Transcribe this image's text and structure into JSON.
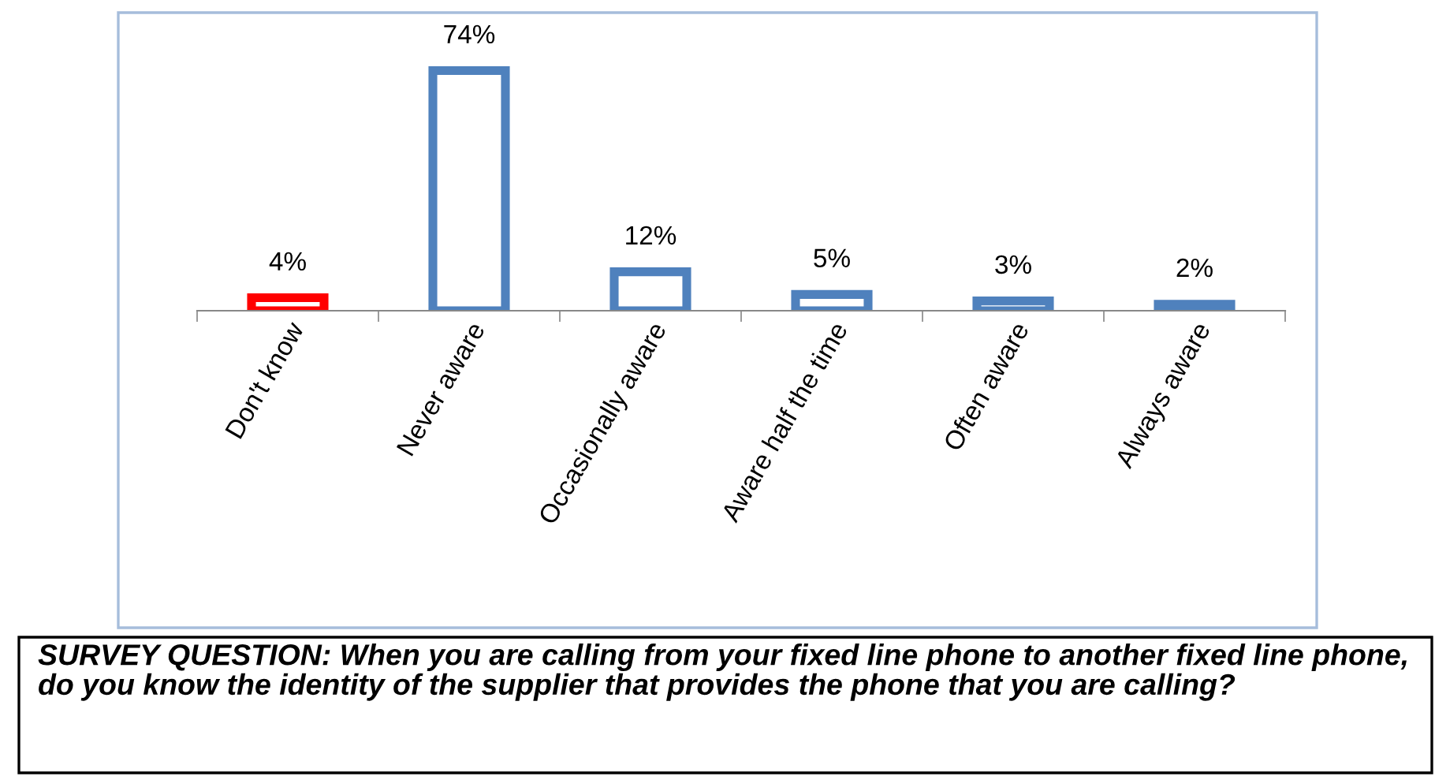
{
  "chart_data": {
    "type": "bar",
    "categories": [
      "Don't know",
      "Never aware",
      "Occasionally aware",
      "Aware half the time",
      "Often aware",
      "Always aware"
    ],
    "values": [
      4,
      74,
      12,
      5,
      3,
      2
    ],
    "colors": [
      "#ff0000",
      "#4f81bd",
      "#4f81bd",
      "#4f81bd",
      "#4f81bd",
      "#4f81bd"
    ],
    "value_labels": [
      "4%",
      "74%",
      "12%",
      "5%",
      "3%",
      "2%"
    ],
    "grid": false,
    "legend": false,
    "annotations": [
      "SURVEY QUESTION: When you are calling from your fixed line phone to another fixed line phone, do you know the identity of the supplier that provides the phone that you are calling?"
    ]
  }
}
